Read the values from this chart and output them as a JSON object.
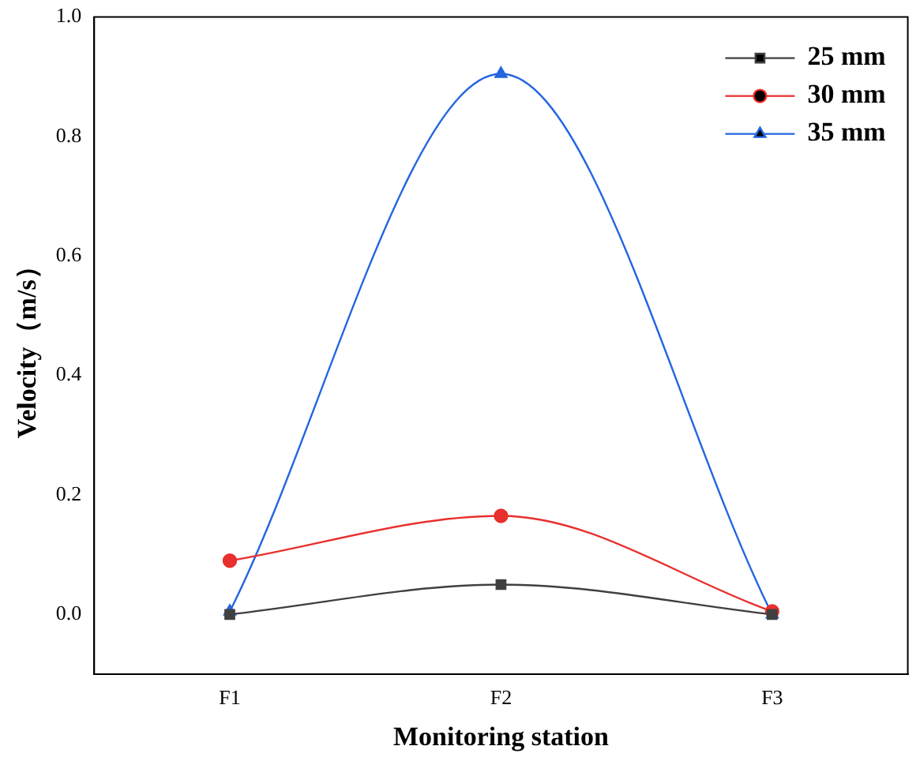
{
  "chart_data": {
    "type": "line",
    "xlabel": "Monitoring station",
    "ylabel": "Velocity（m/s）",
    "categories": [
      "F1",
      "F2",
      "F3"
    ],
    "series": [
      {
        "name": "25 mm",
        "color": "#404040",
        "marker": "square",
        "values": [
          0,
          0.05,
          0
        ]
      },
      {
        "name": "30 mm",
        "color": "#e8302e",
        "marker": "circle",
        "values": [
          0.09,
          0.165,
          0.005
        ]
      },
      {
        "name": "35 mm",
        "color": "#2366e0",
        "marker": "triangle",
        "values": [
          0.005,
          0.905,
          0
        ]
      }
    ],
    "ylim": [
      -0.1,
      1.0
    ],
    "yticks": [
      {
        "value": 0,
        "label": "0.0"
      },
      {
        "value": 0.2,
        "label": "0.2"
      },
      {
        "value": 0.4,
        "label": "0.4"
      },
      {
        "value": 0.6,
        "label": "0.6"
      },
      {
        "value": 0.8,
        "label": "0.8"
      },
      {
        "value": 1,
        "label": "1.0"
      }
    ],
    "grid": false,
    "legend": "top right"
  }
}
